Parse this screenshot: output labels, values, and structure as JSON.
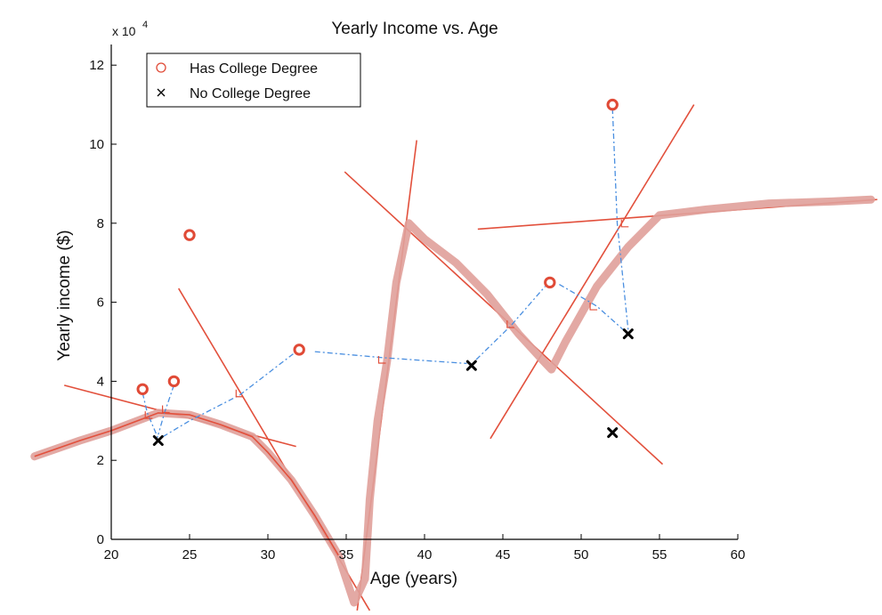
{
  "chart_data": {
    "type": "scatter",
    "title": "Yearly Income vs. Age",
    "xlabel": "Age (years)",
    "ylabel": "Yearly income ($)",
    "y_exponent_label": "x 10",
    "y_exponent_power": "4",
    "xlim": [
      20,
      60
    ],
    "ylim": [
      0,
      125000
    ],
    "x_ticks": [
      20,
      25,
      30,
      35,
      40,
      45,
      50,
      55,
      60
    ],
    "y_ticks": [
      0,
      20000,
      40000,
      60000,
      80000,
      100000,
      120000
    ],
    "y_tick_labels": [
      "0",
      "2",
      "4",
      "6",
      "8",
      "10",
      "12"
    ],
    "legend_position": "top-left",
    "grid": false,
    "colors": {
      "college": "#e04a36",
      "no_college": "#000000",
      "fit_lines": "#e2503c",
      "curve": "#e0a09a",
      "projections": "#4a8fe0"
    },
    "series": [
      {
        "name": "Has College Degree",
        "marker": "circle",
        "points": [
          {
            "x": 22,
            "y": 38000
          },
          {
            "x": 24,
            "y": 40000
          },
          {
            "x": 25,
            "y": 77000
          },
          {
            "x": 32,
            "y": 48000
          },
          {
            "x": 48,
            "y": 65000
          },
          {
            "x": 52,
            "y": 110000
          }
        ]
      },
      {
        "name": "No College Degree",
        "marker": "x",
        "points": [
          {
            "x": 23,
            "y": 25000
          },
          {
            "x": 43,
            "y": 44000
          },
          {
            "x": 52,
            "y": 27000
          },
          {
            "x": 53,
            "y": 52000
          }
        ]
      }
    ],
    "fitted_lines": [
      {
        "from": {
          "x": 17,
          "y": 39000
        },
        "to": {
          "x": 31.8,
          "y": 23500
        }
      },
      {
        "from": {
          "x": 24.3,
          "y": 63500
        },
        "to": {
          "x": 36.5,
          "y": -18000
        }
      },
      {
        "from": {
          "x": 35.7,
          "y": -18000
        },
        "to": {
          "x": 39.5,
          "y": 101000
        }
      },
      {
        "from": {
          "x": 34.9,
          "y": 93000
        },
        "to": {
          "x": 55.2,
          "y": 19000
        }
      },
      {
        "from": {
          "x": 44.2,
          "y": 25500
        },
        "to": {
          "x": 57.2,
          "y": 110000
        }
      },
      {
        "from": {
          "x": 43.4,
          "y": 78500
        },
        "to": {
          "x": 68.9,
          "y": 86000
        }
      }
    ],
    "fitted_curve": [
      {
        "x": 15.1,
        "y": 21000
      },
      {
        "x": 18,
        "y": 25000
      },
      {
        "x": 20,
        "y": 27500
      },
      {
        "x": 22,
        "y": 30500
      },
      {
        "x": 23,
        "y": 32000
      },
      {
        "x": 25,
        "y": 31500
      },
      {
        "x": 27,
        "y": 29000
      },
      {
        "x": 29,
        "y": 26000
      },
      {
        "x": 30,
        "y": 22000
      },
      {
        "x": 31.5,
        "y": 15000
      },
      {
        "x": 33,
        "y": 6000
      },
      {
        "x": 34.5,
        "y": -4000
      },
      {
        "x": 35.5,
        "y": -16000
      },
      {
        "x": 36.2,
        "y": -10000
      },
      {
        "x": 36.5,
        "y": 10000
      },
      {
        "x": 37,
        "y": 30000
      },
      {
        "x": 37.6,
        "y": 45000
      },
      {
        "x": 38.2,
        "y": 65000
      },
      {
        "x": 39,
        "y": 80000
      },
      {
        "x": 40,
        "y": 76000
      },
      {
        "x": 42,
        "y": 70000
      },
      {
        "x": 44,
        "y": 62000
      },
      {
        "x": 46,
        "y": 52000
      },
      {
        "x": 47.5,
        "y": 45500
      },
      {
        "x": 48.1,
        "y": 43000
      },
      {
        "x": 49,
        "y": 50000
      },
      {
        "x": 51,
        "y": 64000
      },
      {
        "x": 53,
        "y": 74000
      },
      {
        "x": 55,
        "y": 82000
      },
      {
        "x": 58,
        "y": 83500
      },
      {
        "x": 62,
        "y": 85000
      },
      {
        "x": 66,
        "y": 85500
      },
      {
        "x": 68.5,
        "y": 86000
      }
    ],
    "projections": [
      {
        "points": [
          {
            "x": 22,
            "y": 37000
          },
          {
            "x": 22.3,
            "y": 32000
          },
          {
            "x": 23,
            "y": 25500
          }
        ]
      },
      {
        "points": [
          {
            "x": 24,
            "y": 39000
          },
          {
            "x": 23.4,
            "y": 32000
          },
          {
            "x": 23,
            "y": 26500
          }
        ]
      },
      {
        "points": [
          {
            "x": 23.3,
            "y": 26000
          },
          {
            "x": 25,
            "y": 30000
          },
          {
            "x": 28.2,
            "y": 36500
          },
          {
            "x": 31.8,
            "y": 47500
          }
        ]
      },
      {
        "points": [
          {
            "x": 33,
            "y": 47500
          },
          {
            "x": 37.3,
            "y": 46000
          },
          {
            "x": 42.7,
            "y": 44500
          }
        ]
      },
      {
        "points": [
          {
            "x": 43.3,
            "y": 45500
          },
          {
            "x": 45.5,
            "y": 54000
          },
          {
            "x": 47.7,
            "y": 64000
          }
        ]
      },
      {
        "points": [
          {
            "x": 48.6,
            "y": 64500
          },
          {
            "x": 51,
            "y": 59000
          },
          {
            "x": 52.7,
            "y": 53000
          }
        ]
      },
      {
        "points": [
          {
            "x": 52,
            "y": 109000
          },
          {
            "x": 52.3,
            "y": 80000
          },
          {
            "x": 53,
            "y": 53000
          }
        ]
      }
    ],
    "right_angle_markers": [
      {
        "x": 22.4,
        "y": 31500
      },
      {
        "x": 23.5,
        "y": 33000
      },
      {
        "x": 28.2,
        "y": 37000
      },
      {
        "x": 37.3,
        "y": 45500
      },
      {
        "x": 45.5,
        "y": 54500
      },
      {
        "x": 50.8,
        "y": 59000
      },
      {
        "x": 52.8,
        "y": 80000
      }
    ]
  }
}
